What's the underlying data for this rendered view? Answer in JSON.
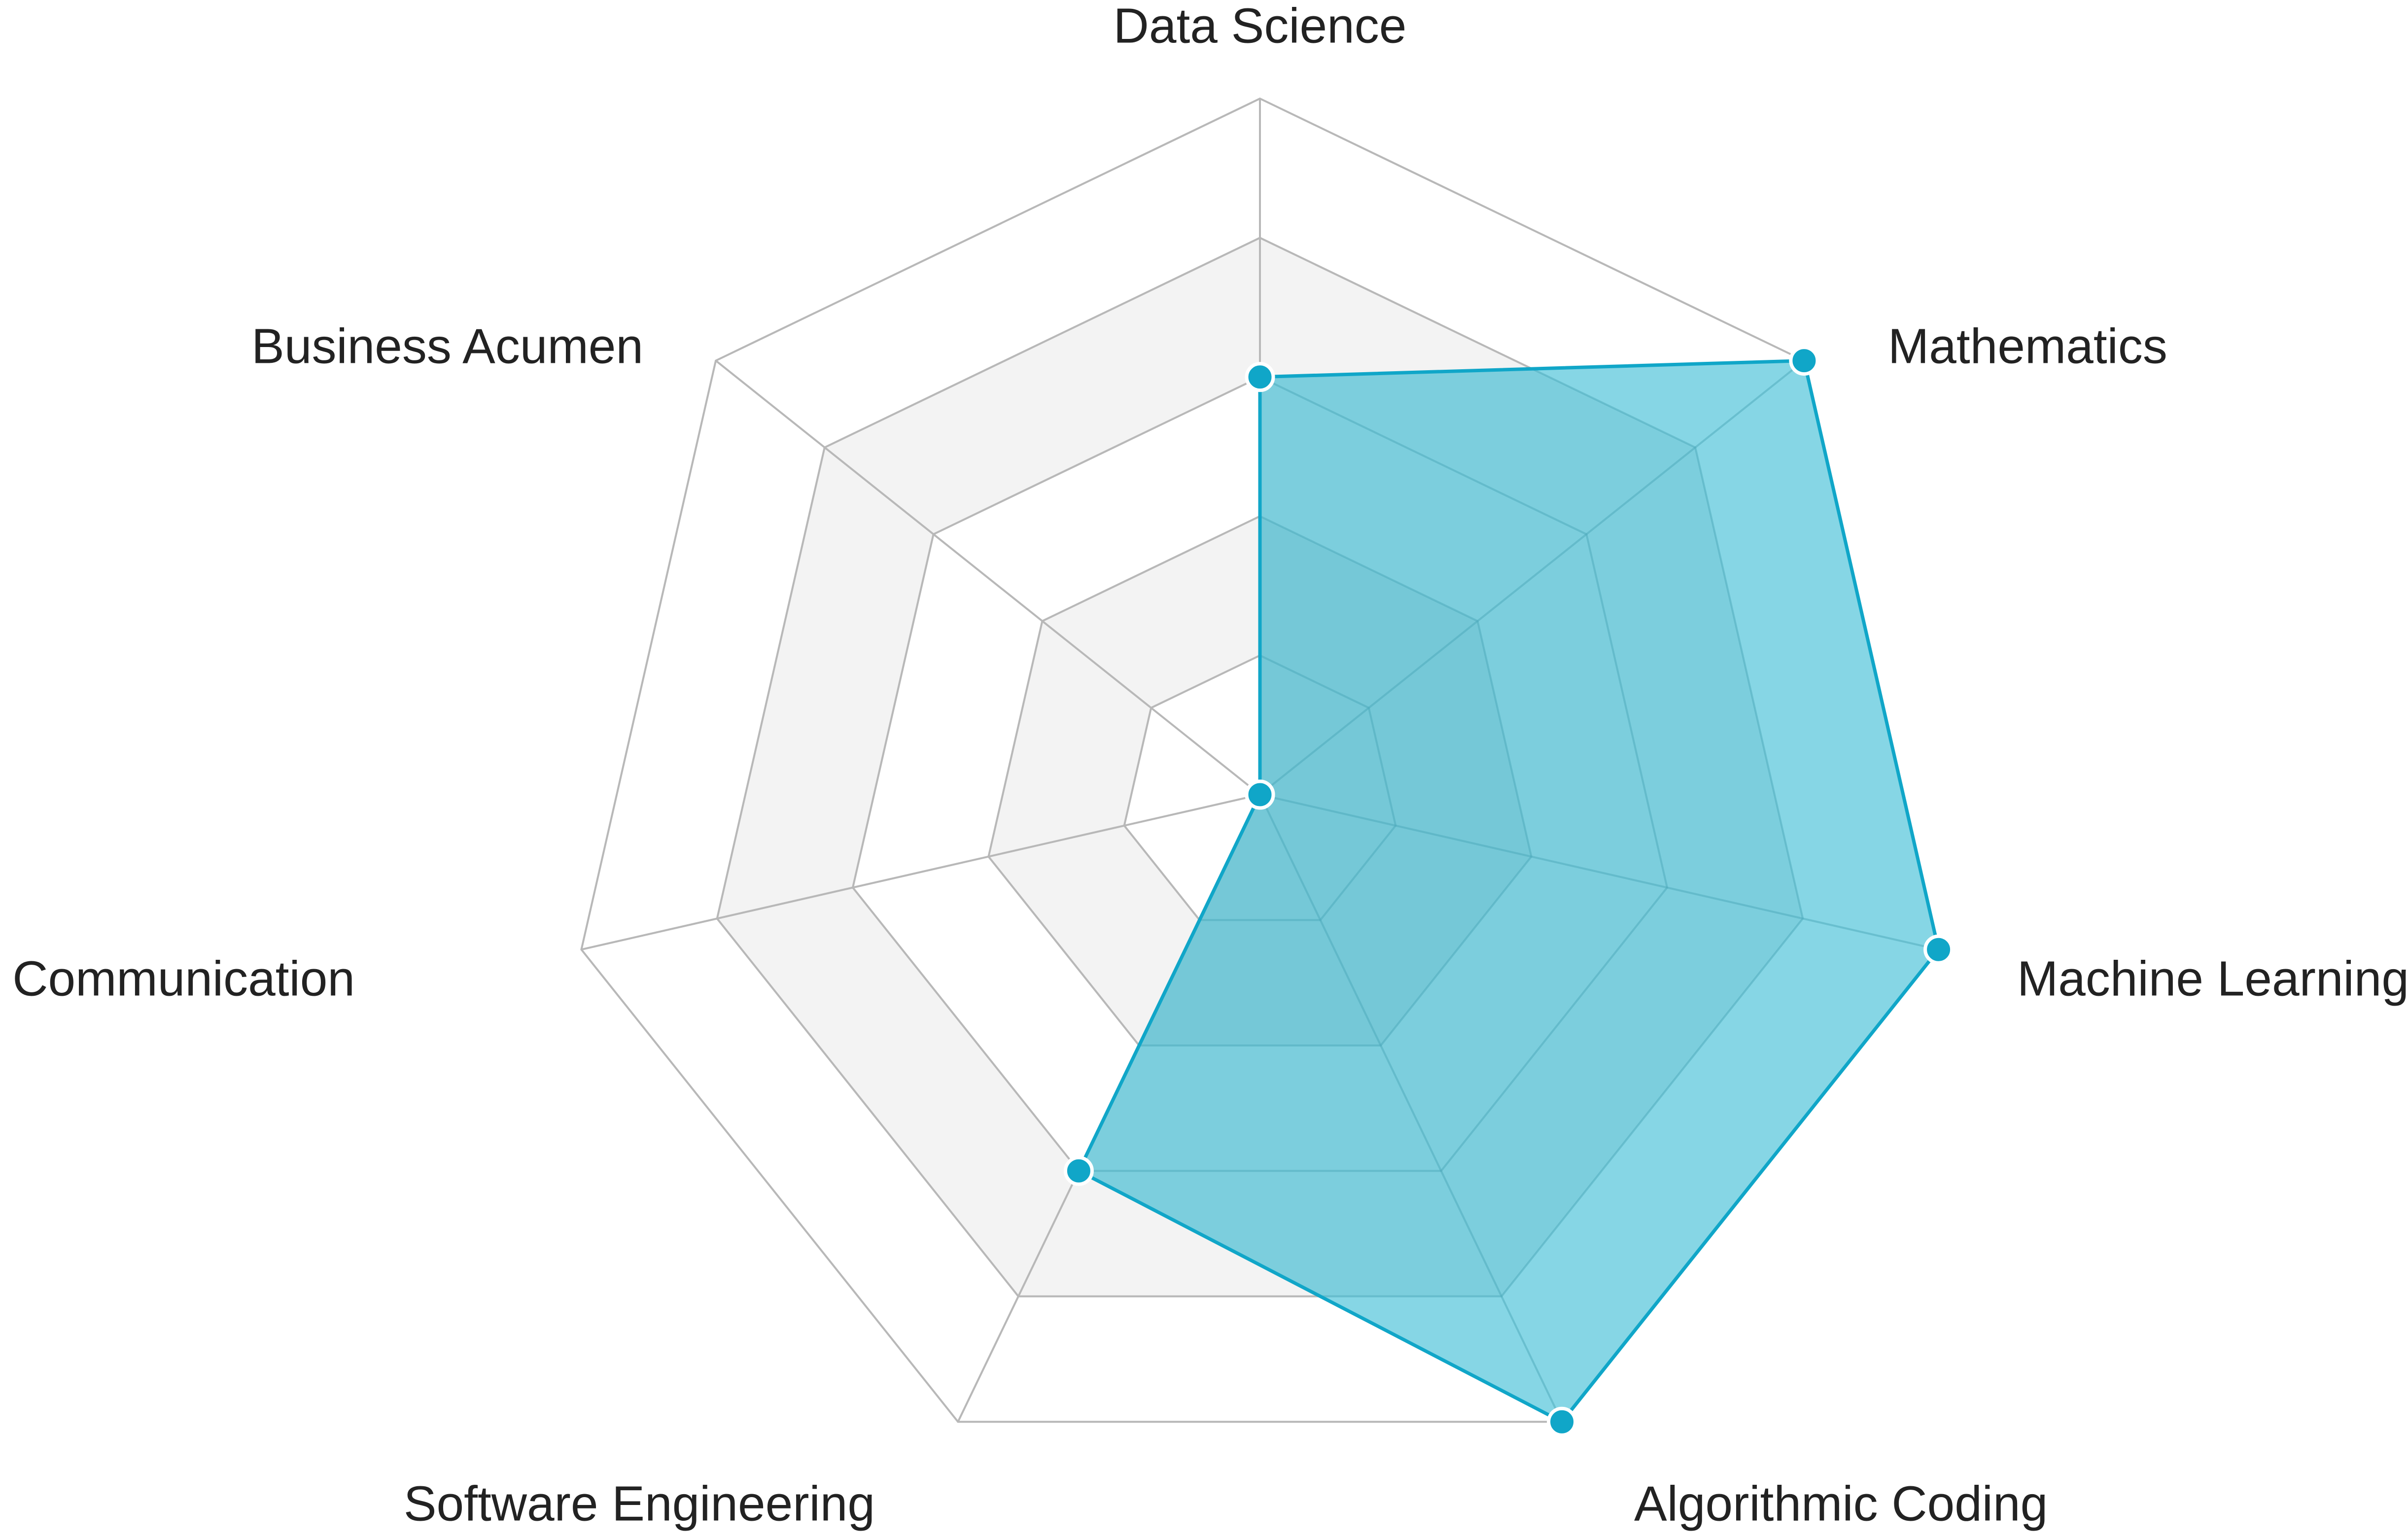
{
  "chart_data": {
    "type": "radar",
    "axes": [
      "Data Science",
      "Mathematics",
      "Machine Learning",
      "Algorithmic Coding",
      "Software Engineering",
      "Communication",
      "Business Acumen"
    ],
    "values": [
      3,
      5,
      5,
      5,
      3,
      0,
      0
    ],
    "max": 5,
    "levels": 5,
    "colors": {
      "fill": "#7fd4e4",
      "stroke": "#10a6c8",
      "point": "#10a6c8",
      "point_outline": "#ffffff",
      "grid_line": "#b8b8b8",
      "band_fill": "#f3f3f3",
      "label": "#222222"
    }
  }
}
